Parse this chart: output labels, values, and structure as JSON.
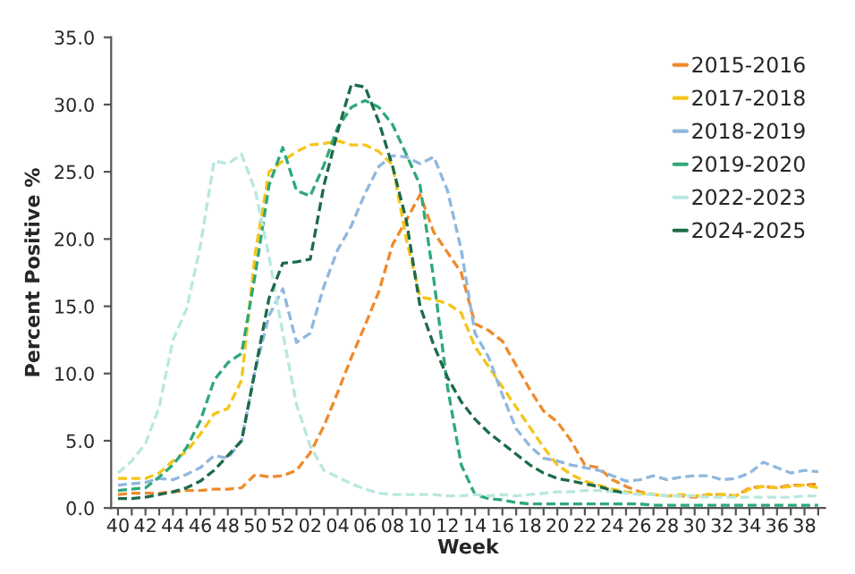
{
  "chart_data": {
    "type": "line",
    "xlabel": "Week",
    "ylabel": "Percent Positive %",
    "categories": [
      "40",
      null,
      "42",
      null,
      "44",
      null,
      "46",
      null,
      "48",
      null,
      "50",
      null,
      "52",
      null,
      "02",
      null,
      "04",
      null,
      "06",
      null,
      "08",
      null,
      "10",
      null,
      "12",
      null,
      "14",
      null,
      "16",
      null,
      "18",
      null,
      "20",
      null,
      "22",
      null,
      "24",
      null,
      "26",
      null,
      "28",
      null,
      "30",
      null,
      "32",
      null,
      "34",
      null,
      "36",
      null,
      "38",
      null
    ],
    "series": [
      {
        "name": "2015-2016",
        "color": "#f08a2c",
        "values": [
          1.0,
          1.1,
          1.1,
          1.1,
          1.2,
          1.3,
          1.3,
          1.4,
          1.4,
          1.5,
          2.5,
          2.3,
          2.4,
          2.8,
          4.1,
          6.1,
          8.6,
          11.2,
          13.6,
          16.1,
          19.6,
          21.4,
          23.3,
          20.5,
          19.0,
          17.5,
          13.7,
          13.2,
          12.4,
          10.6,
          8.8,
          7.2,
          6.4,
          5.0,
          3.2,
          3.0,
          2.1,
          1.6,
          1.2,
          1.0,
          0.9,
          0.9,
          0.8,
          1.0,
          1.0,
          0.9,
          1.5,
          1.6,
          1.5,
          1.7,
          1.7,
          1.8
        ]
      },
      {
        "name": "2017-2018",
        "color": "#f5c518",
        "values": [
          2.2,
          2.2,
          2.2,
          2.6,
          3.5,
          4.2,
          5.5,
          7.0,
          7.4,
          9.5,
          19.0,
          25.0,
          25.8,
          26.5,
          27.0,
          27.1,
          27.3,
          27.0,
          27.0,
          26.5,
          25.5,
          20.0,
          15.7,
          15.5,
          15.2,
          14.5,
          12.0,
          10.5,
          9.0,
          7.5,
          6.0,
          4.5,
          3.2,
          2.5,
          2.0,
          1.7,
          1.4,
          1.2,
          1.1,
          1.0,
          0.9,
          1.0,
          0.9,
          1.0,
          1.0,
          0.9,
          1.4,
          1.6,
          1.5,
          1.6,
          1.7,
          1.5
        ]
      },
      {
        "name": "2018-2019",
        "color": "#8fb8de",
        "values": [
          1.7,
          1.8,
          1.9,
          2.2,
          2.1,
          2.5,
          3.0,
          3.9,
          3.7,
          5.0,
          10.3,
          14.3,
          16.3,
          12.3,
          13.0,
          16.5,
          19.2,
          21.0,
          23.4,
          25.4,
          26.2,
          26.1,
          25.6,
          26.1,
          23.6,
          19.2,
          13.0,
          11.2,
          8.4,
          5.9,
          4.6,
          3.7,
          3.5,
          3.2,
          3.0,
          2.8,
          2.4,
          2.0,
          2.1,
          2.4,
          2.1,
          2.3,
          2.4,
          2.4,
          2.1,
          2.2,
          2.6,
          3.4,
          3.0,
          2.6,
          2.8,
          2.7
        ]
      },
      {
        "name": "2019-2020",
        "color": "#2ea87a",
        "values": [
          1.3,
          1.4,
          1.5,
          2.3,
          3.2,
          4.5,
          6.5,
          9.5,
          10.8,
          11.5,
          17.4,
          24.0,
          26.8,
          23.6,
          23.2,
          25.5,
          28.3,
          29.8,
          30.3,
          29.8,
          28.5,
          26.3,
          24.0,
          17.0,
          9.0,
          3.2,
          1.0,
          0.7,
          0.6,
          0.4,
          0.3,
          0.3,
          0.3,
          0.3,
          0.3,
          0.3,
          0.3,
          0.3,
          0.3,
          0.2,
          0.2,
          0.2,
          0.2,
          0.2,
          0.2,
          0.2,
          0.2,
          0.2,
          0.2,
          0.2,
          0.2,
          0.2
        ]
      },
      {
        "name": "2022-2023",
        "color": "#b8e8e0",
        "values": [
          2.6,
          3.5,
          4.8,
          7.5,
          12.5,
          14.8,
          19.5,
          25.8,
          25.6,
          26.3,
          23.6,
          18.7,
          13.0,
          7.7,
          4.6,
          2.8,
          2.3,
          1.8,
          1.4,
          1.1,
          1.0,
          1.0,
          1.0,
          1.0,
          0.9,
          0.9,
          1.0,
          0.9,
          1.0,
          0.9,
          1.0,
          1.1,
          1.2,
          1.2,
          1.3,
          1.3,
          1.2,
          1.1,
          1.0,
          1.0,
          0.9,
          0.9,
          0.9,
          0.8,
          0.8,
          0.8,
          0.8,
          0.8,
          0.8,
          0.8,
          0.9,
          0.9
        ]
      },
      {
        "name": "2024-2025",
        "color": "#1d6b48",
        "values": [
          0.7,
          0.7,
          0.8,
          1.0,
          1.2,
          1.5,
          2.0,
          2.8,
          3.9,
          5.0,
          10.3,
          15.6,
          18.2,
          18.3,
          18.5,
          24.0,
          28.0,
          31.5,
          31.3,
          28.7,
          25.4,
          21.4,
          15.0,
          12.1,
          9.7,
          7.9,
          6.6,
          5.6,
          4.8,
          4.0,
          3.2,
          2.6,
          2.2,
          2.0,
          1.8,
          1.6,
          1.3,
          1.1,
          null,
          null,
          null,
          null,
          null,
          null,
          null,
          null,
          null,
          null,
          null,
          null,
          null,
          null
        ]
      }
    ],
    "ylim": [
      0,
      35
    ],
    "yticks": [
      {
        "value": 0,
        "label": "0.0"
      },
      {
        "value": 5,
        "label": "5.0"
      },
      {
        "value": 10,
        "label": "10.0"
      },
      {
        "value": 15,
        "label": "15.0"
      },
      {
        "value": 20,
        "label": "20.0"
      },
      {
        "value": 25,
        "label": "25.0"
      },
      {
        "value": 30,
        "label": "30.0"
      },
      {
        "value": 35,
        "label": "35.0"
      }
    ],
    "line_style": "dashed",
    "marker": "none",
    "legend": "top right",
    "grid": false
  }
}
